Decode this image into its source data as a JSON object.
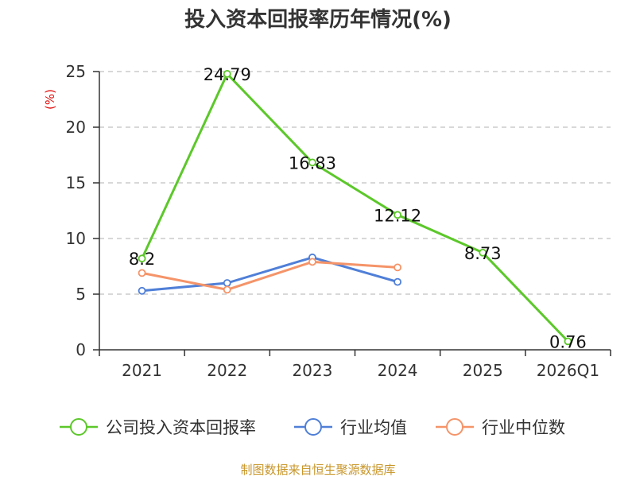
{
  "chart_data": {
    "type": "line",
    "title": "投入资本回报率历年情况(%)",
    "ylabel": "(%)",
    "xlabel": "",
    "categories": [
      "2021",
      "2022",
      "2023",
      "2024",
      "2025",
      "2026Q1"
    ],
    "ylim": [
      0,
      25
    ],
    "yticks": [
      0,
      5,
      10,
      15,
      20,
      25
    ],
    "grid": true,
    "legend_position": "bottom",
    "series": [
      {
        "name": "公司投入资本回报率",
        "color": "#5cc82a",
        "values": [
          8.2,
          24.79,
          16.83,
          12.12,
          8.73,
          0.76
        ],
        "labels": [
          "8.2",
          "24.79",
          "16.83",
          "12.12",
          "8.73",
          "0.76"
        ]
      },
      {
        "name": "行业均值",
        "color": "#4f7fd8",
        "values": [
          5.3,
          6.0,
          8.3,
          6.1,
          null,
          null
        ]
      },
      {
        "name": "行业中位数",
        "color": "#f59469",
        "values": [
          6.9,
          5.4,
          7.9,
          7.4,
          null,
          null
        ]
      }
    ],
    "source": "制图数据来自恒生聚源数据库"
  }
}
